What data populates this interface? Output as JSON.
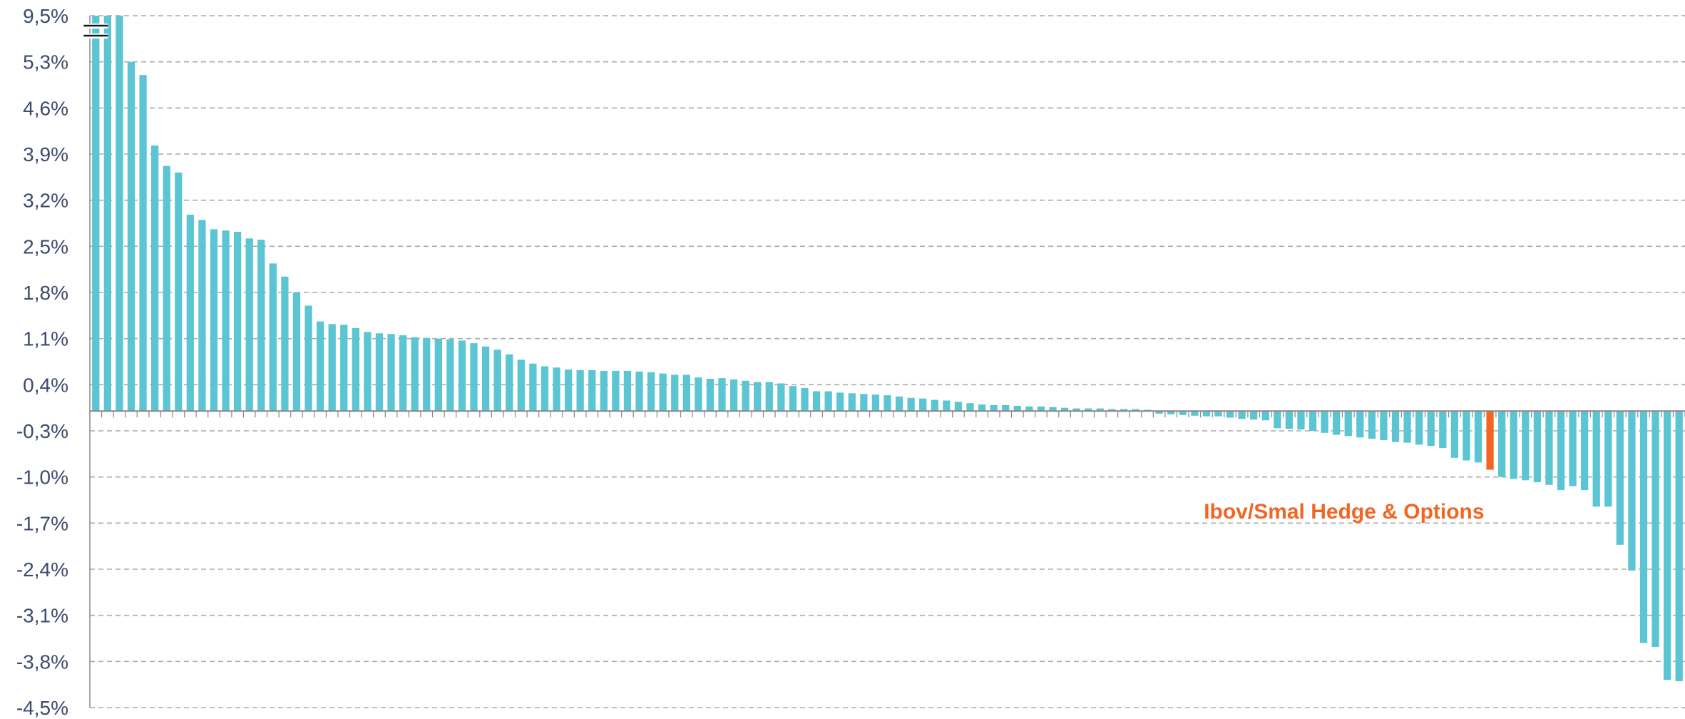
{
  "chart_data": {
    "type": "bar",
    "title": "",
    "xlabel": "",
    "ylabel": "",
    "ylim": [
      -4.5,
      9.5
    ],
    "y_ticks": [
      {
        "label": "9,5%",
        "value": 9.5
      },
      {
        "label": "5,3%",
        "value": 5.3
      },
      {
        "label": "4,6%",
        "value": 4.6
      },
      {
        "label": "3,9%",
        "value": 3.9
      },
      {
        "label": "3,2%",
        "value": 3.2
      },
      {
        "label": "2,5%",
        "value": 2.5
      },
      {
        "label": "1,8%",
        "value": 1.8
      },
      {
        "label": "1,1%",
        "value": 1.1
      },
      {
        "label": "0,4%",
        "value": 0.4
      },
      {
        "label": "-0,3%",
        "value": -0.3
      },
      {
        "label": "-1,0%",
        "value": -1.0
      },
      {
        "label": "-1,7%",
        "value": -1.7
      },
      {
        "label": "-2,4%",
        "value": -2.4
      },
      {
        "label": "-3,1%",
        "value": -3.1
      },
      {
        "label": "-3,8%",
        "value": -3.8
      },
      {
        "label": "-4,5%",
        "value": -4.5
      }
    ],
    "axis_break": "between 5.3% and 9.5%",
    "grid": true,
    "grid_style": "dashed",
    "colors": {
      "bar": "#5bc5d3",
      "highlight": "#f26522",
      "axis": "#888888",
      "grid": "#aaaaaa",
      "tick_text": "#3d4a6b"
    },
    "highlight_index": 118,
    "annotation": "Ibov/Smal Hedge & Options",
    "values": [
      9.5,
      5.5,
      5.38,
      5.3,
      5.1,
      4.03,
      3.72,
      3.62,
      2.98,
      2.9,
      2.76,
      2.74,
      2.72,
      2.62,
      2.6,
      2.24,
      2.04,
      1.8,
      1.6,
      1.36,
      1.32,
      1.31,
      1.26,
      1.2,
      1.18,
      1.17,
      1.15,
      1.12,
      1.11,
      1.1,
      1.09,
      1.07,
      1.03,
      0.98,
      0.93,
      0.86,
      0.78,
      0.72,
      0.68,
      0.66,
      0.63,
      0.62,
      0.62,
      0.61,
      0.61,
      0.61,
      0.6,
      0.59,
      0.57,
      0.55,
      0.55,
      0.51,
      0.49,
      0.5,
      0.48,
      0.46,
      0.44,
      0.44,
      0.42,
      0.38,
      0.35,
      0.3,
      0.3,
      0.28,
      0.27,
      0.26,
      0.25,
      0.24,
      0.22,
      0.2,
      0.19,
      0.17,
      0.16,
      0.14,
      0.12,
      0.1,
      0.09,
      0.09,
      0.08,
      0.07,
      0.07,
      0.06,
      0.05,
      0.04,
      0.04,
      0.04,
      0.03,
      0.03,
      0.03,
      0.02,
      -0.04,
      -0.05,
      -0.06,
      -0.07,
      -0.08,
      -0.08,
      -0.1,
      -0.12,
      -0.13,
      -0.14,
      -0.26,
      -0.27,
      -0.28,
      -0.3,
      -0.33,
      -0.36,
      -0.38,
      -0.4,
      -0.42,
      -0.44,
      -0.47,
      -0.48,
      -0.51,
      -0.53,
      -0.56,
      -0.71,
      -0.75,
      -0.78,
      -0.89,
      -1.0,
      -1.03,
      -1.05,
      -1.08,
      -1.12,
      -1.2,
      -1.14,
      -1.2,
      -1.45,
      -1.45,
      -2.03,
      -2.42,
      -3.52,
      -3.58,
      -4.08,
      -4.1
    ]
  }
}
